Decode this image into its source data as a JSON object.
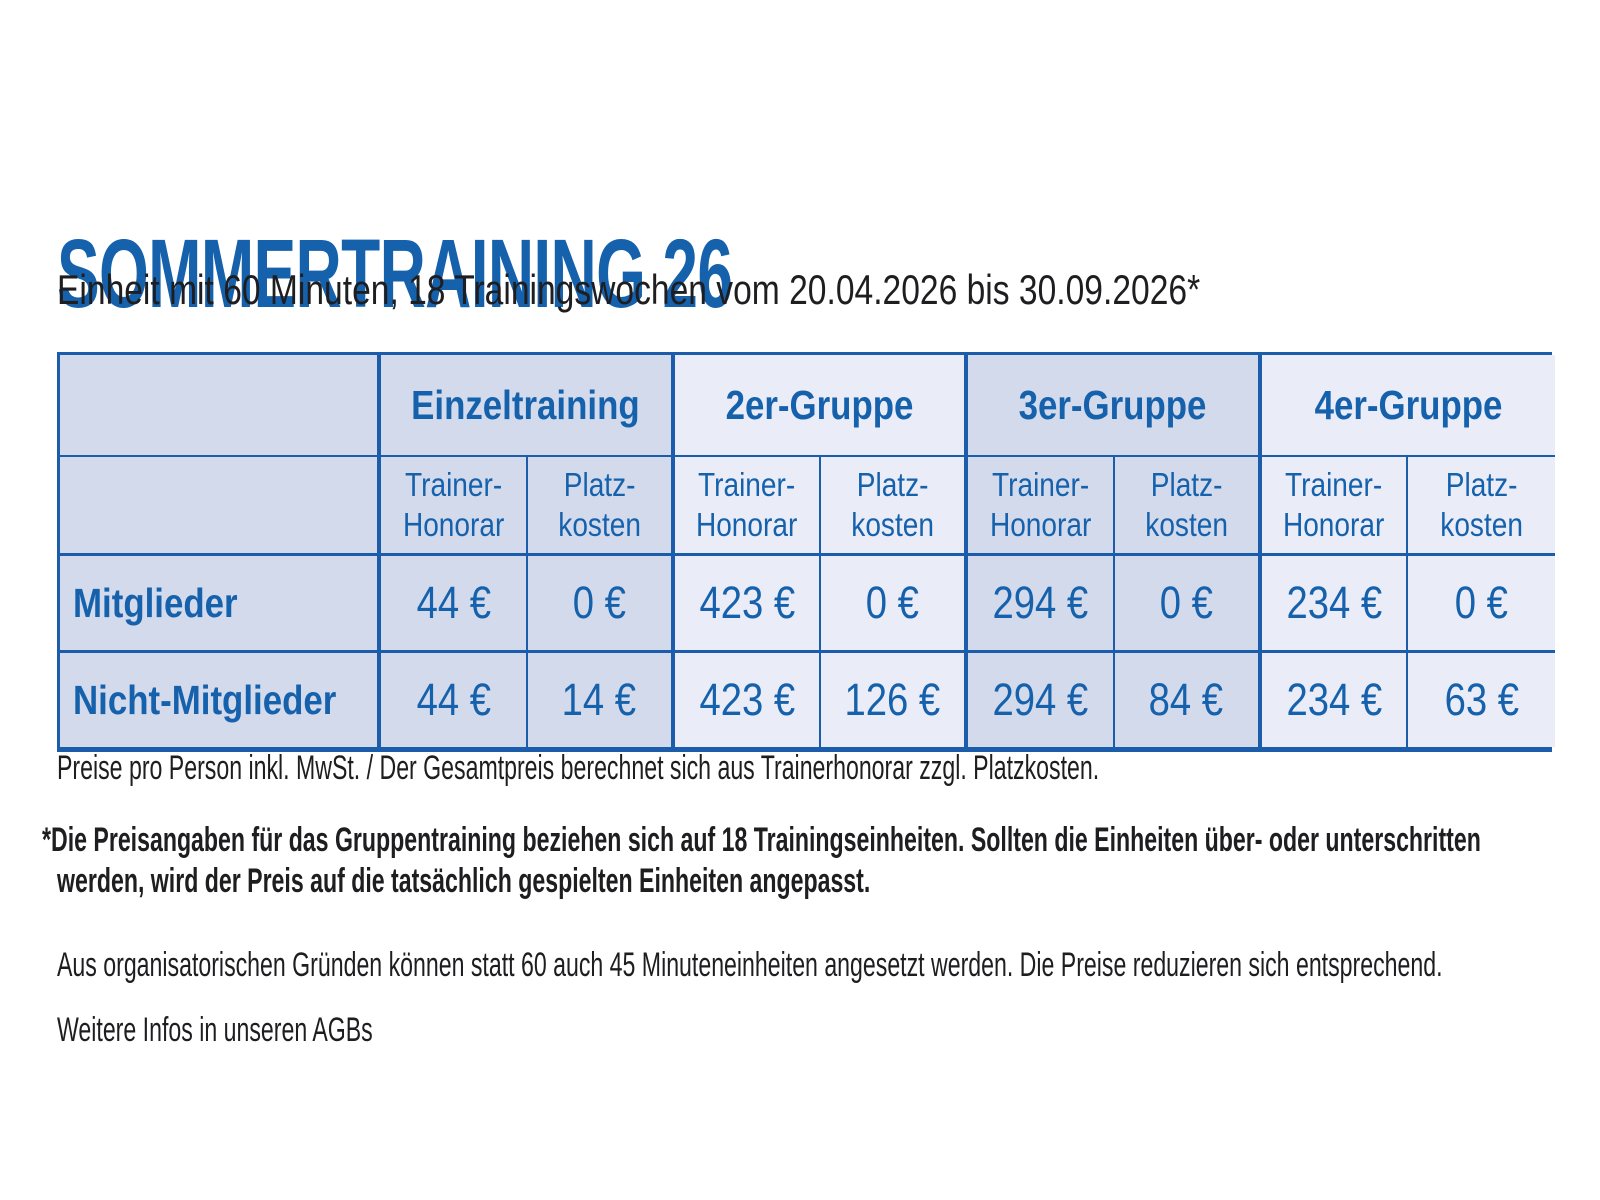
{
  "colors": {
    "accent_blue": "#1661ac",
    "table_line_blue": "#1b5dab",
    "cell_dark": "#d3daec",
    "cell_light": "#eaedf7",
    "body_text": "#1e1e20"
  },
  "header": {
    "title": "SOMMERTRAINING 26",
    "subtitle": "Einheit mit 60 Minuten, 18 Trainingswochen vom 20.04.2026 bis 30.09.2026*"
  },
  "table": {
    "group_headers": [
      "Einzeltraining",
      "2er-Gruppe",
      "3er-Gruppe",
      "4er-Gruppe"
    ],
    "subheader": {
      "trainer_line1": "Trainer-",
      "trainer_line2": "Honorar",
      "platz_line1": "Platz-",
      "platz_line2": "kosten"
    },
    "rows": [
      {
        "label": "Mitglieder",
        "values": [
          "44 €",
          "0 €",
          "423 €",
          "0 €",
          "294 €",
          "0 €",
          "234 €",
          "0 €"
        ]
      },
      {
        "label": "Nicht-Mitglieder",
        "values": [
          "44 €",
          "14 €",
          "423 €",
          "126 €",
          "294 €",
          "84 €",
          "234 €",
          "63 €"
        ]
      }
    ]
  },
  "notes": {
    "price_info": "Preise pro Person inkl. MwSt. / Der Gesamtpreis berechnet sich aus Trainerhonorar zzgl. Platzkosten.",
    "asterisk_note_line1": "*Die Preisangaben für das Gruppentraining beziehen sich auf 18 Trainingseinheiten. Sollten die Einheiten über- oder unterschritten",
    "asterisk_note_line2": "werden, wird der Preis auf die tatsächlich gespielten Einheiten angepasst.",
    "minutes_info": "Aus organisatorischen Gründen können statt 60 auch 45 Minuteneinheiten angesetzt werden. Die Preise reduzieren sich entsprechend.",
    "agb_info": "Weitere Infos in unseren AGBs"
  }
}
